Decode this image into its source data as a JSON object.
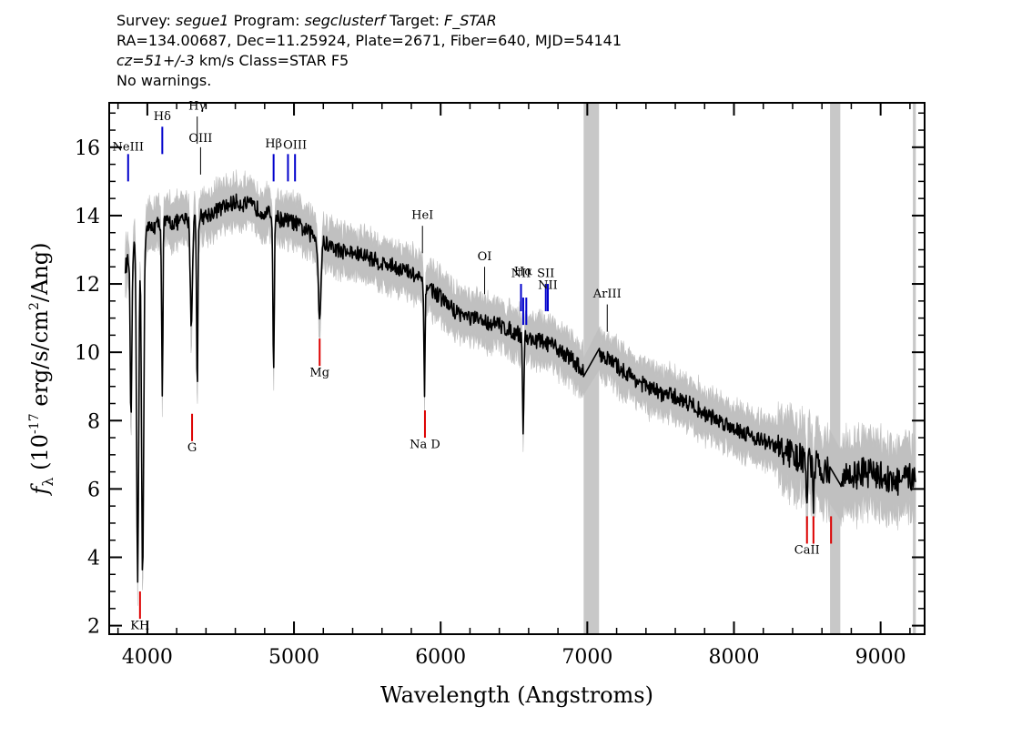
{
  "header": {
    "line1": {
      "survey_label": "Survey:",
      "survey": "segue1",
      "program_label": "Program:",
      "program": "segclusterf",
      "target_label": "Target:",
      "target": "F_STAR"
    },
    "line2": "RA=134.00687, Dec=11.25924, Plate=2671, Fiber=640, MJD=54141",
    "line3": {
      "cz": "cz=51+/-3",
      "rest": "km/s Class=STAR F5"
    },
    "line4": "No warnings."
  },
  "chart_data": {
    "type": "line",
    "xlabel": "Wavelength (Angstroms)",
    "ylabel": "f_λ (10^-17 erg/s/cm^2/Ang)",
    "xlim": [
      3740,
      9300
    ],
    "ylim": [
      1.75,
      17.3
    ],
    "x_ticks": [
      4000,
      5000,
      6000,
      7000,
      8000,
      9000
    ],
    "y_ticks": [
      2,
      4,
      6,
      8,
      10,
      12,
      14,
      16
    ],
    "grid": false,
    "masked_bands": [
      [
        6975,
        7080
      ],
      [
        8655,
        8725
      ],
      [
        9220,
        9240
      ]
    ],
    "continuum": [
      [
        3850,
        12.5
      ],
      [
        3900,
        13.0
      ],
      [
        4000,
        13.6
      ],
      [
        4100,
        13.8
      ],
      [
        4200,
        13.8
      ],
      [
        4300,
        13.9
      ],
      [
        4400,
        14.0
      ],
      [
        4500,
        14.2
      ],
      [
        4600,
        14.4
      ],
      [
        4700,
        14.3
      ],
      [
        4800,
        14.1
      ],
      [
        4900,
        13.9
      ],
      [
        5000,
        13.8
      ],
      [
        5100,
        13.5
      ],
      [
        5200,
        13.2
      ],
      [
        5300,
        13.0
      ],
      [
        5400,
        12.9
      ],
      [
        5500,
        12.8
      ],
      [
        5600,
        12.6
      ],
      [
        5700,
        12.5
      ],
      [
        5800,
        12.3
      ],
      [
        5900,
        12.0
      ],
      [
        6000,
        11.6
      ],
      [
        6100,
        11.2
      ],
      [
        6200,
        11.0
      ],
      [
        6300,
        10.9
      ],
      [
        6400,
        10.8
      ],
      [
        6500,
        10.6
      ],
      [
        6600,
        10.4
      ],
      [
        6700,
        10.3
      ],
      [
        6800,
        10.1
      ],
      [
        6900,
        9.8
      ],
      [
        6975,
        9.4
      ],
      [
        7080,
        10.0
      ],
      [
        7200,
        9.6
      ],
      [
        7300,
        9.3
      ],
      [
        7400,
        9.0
      ],
      [
        7500,
        8.8
      ],
      [
        7600,
        8.7
      ],
      [
        7700,
        8.5
      ],
      [
        7800,
        8.2
      ],
      [
        7900,
        8.0
      ],
      [
        8000,
        7.8
      ],
      [
        8100,
        7.6
      ],
      [
        8200,
        7.4
      ],
      [
        8300,
        7.2
      ],
      [
        8400,
        7.0
      ],
      [
        8500,
        6.8
      ],
      [
        8600,
        6.6
      ],
      [
        8655,
        6.5
      ],
      [
        8725,
        6.3
      ],
      [
        8800,
        6.4
      ],
      [
        8900,
        6.5
      ],
      [
        9000,
        6.4
      ],
      [
        9100,
        6.2
      ],
      [
        9200,
        6.3
      ],
      [
        9240,
        6.5
      ]
    ],
    "absorption_features": [
      [
        3889,
        8.0,
        8
      ],
      [
        3934,
        3.4,
        10
      ],
      [
        3968,
        3.4,
        10
      ],
      [
        4102,
        8.8,
        6
      ],
      [
        4300,
        10.8,
        10
      ],
      [
        4340,
        8.8,
        6
      ],
      [
        4861,
        9.2,
        6
      ],
      [
        5175,
        11.0,
        12
      ],
      [
        5890,
        8.8,
        6
      ],
      [
        6563,
        7.6,
        6
      ],
      [
        8498,
        5.8,
        6
      ],
      [
        8542,
        5.4,
        6
      ],
      [
        8662,
        5.4,
        6
      ]
    ],
    "lines": [
      {
        "label": "NeIII",
        "x": 3869,
        "color": "blue",
        "pos": "up",
        "y1": 15.0,
        "y2": 15.8,
        "label_y": 15.9
      },
      {
        "label": "Hδ",
        "x": 4102,
        "color": "blue",
        "pos": "up",
        "y1": 15.8,
        "y2": 16.6,
        "label_y": 16.8
      },
      {
        "label": "Hγ",
        "x": 4340,
        "color": "black",
        "pos": "up",
        "y1": 16.1,
        "y2": 16.9,
        "label_y": 17.1
      },
      {
        "label": "OIII",
        "x": 4363,
        "color": "black",
        "pos": "up",
        "y1": 15.2,
        "y2": 16.0,
        "label_y": 16.15
      },
      {
        "label": "Hβ",
        "x": 4861,
        "color": "blue",
        "pos": "up",
        "y1": 15.0,
        "y2": 15.8,
        "label_y": 16.0
      },
      {
        "label": "OIII",
        "x": 4959,
        "color": "blue",
        "pos": "up",
        "y1": 15.0,
        "y2": 15.8,
        "label_y": null
      },
      {
        "label": "OIII",
        "x": 5007,
        "color": "blue",
        "pos": "up",
        "y1": 15.0,
        "y2": 15.8,
        "label_y": 15.95
      },
      {
        "label": "HeI",
        "x": 5876,
        "color": "black",
        "pos": "up",
        "y1": 12.9,
        "y2": 13.7,
        "label_y": 13.9
      },
      {
        "label": "OI",
        "x": 6300,
        "color": "black",
        "pos": "up",
        "y1": 11.7,
        "y2": 12.5,
        "label_y": 12.7
      },
      {
        "label": "NII",
        "x": 6548,
        "color": "blue",
        "pos": "up",
        "y1": 11.2,
        "y2": 12.0,
        "label_y": 12.2
      },
      {
        "label": "Hα",
        "x": 6563,
        "color": "blue",
        "pos": "up",
        "y1": 10.8,
        "y2": 11.6,
        "label_y": 12.25
      },
      {
        "label": "NII",
        "x": 6584,
        "color": "blue",
        "pos": "up",
        "y1": 10.8,
        "y2": 11.6,
        "label_y": null
      },
      {
        "label": "SII",
        "x": 6717,
        "color": "blue",
        "pos": "up",
        "y1": 11.2,
        "y2": 12.0,
        "label_y": 12.2
      },
      {
        "label": "NII",
        "x": 6731,
        "color": "blue",
        "pos": "up",
        "y1": 11.2,
        "y2": 12.0,
        "label_y": 11.85
      },
      {
        "label": "ArIII",
        "x": 7136,
        "color": "black",
        "pos": "up",
        "y1": 10.6,
        "y2": 11.4,
        "label_y": 11.6
      },
      {
        "label": "Mg",
        "x": 5175,
        "color": "red",
        "pos": "down",
        "y1": 9.6,
        "y2": 10.4,
        "label_y": 9.3
      },
      {
        "label": "G",
        "x": 4305,
        "color": "red",
        "pos": "down",
        "y1": 7.4,
        "y2": 8.2,
        "label_y": 7.1
      },
      {
        "label": "Na D",
        "x": 5893,
        "color": "red",
        "pos": "down",
        "y1": 7.5,
        "y2": 8.3,
        "label_y": 7.2
      },
      {
        "label": "CaII",
        "x": 8498,
        "color": "red",
        "pos": "down",
        "y1": 4.4,
        "y2": 5.2,
        "label_y": 4.1
      },
      {
        "label": "CaII",
        "x": 8542,
        "color": "red",
        "pos": "down",
        "y1": 4.4,
        "y2": 5.2,
        "label_y": null
      },
      {
        "label": "CaII",
        "x": 8662,
        "color": "red",
        "pos": "down",
        "y1": 4.4,
        "y2": 5.2,
        "label_y": null
      },
      {
        "label": "KH",
        "x": 3950,
        "color": "red",
        "pos": "down",
        "y1": 2.2,
        "y2": 3.0,
        "label_y": 1.9
      }
    ],
    "colors": {
      "flux": "#000000",
      "error": "#c0c0c0",
      "mask": "#c8c8c8",
      "blue": "#0000cc",
      "red": "#dd0000",
      "black": "#000000"
    }
  }
}
